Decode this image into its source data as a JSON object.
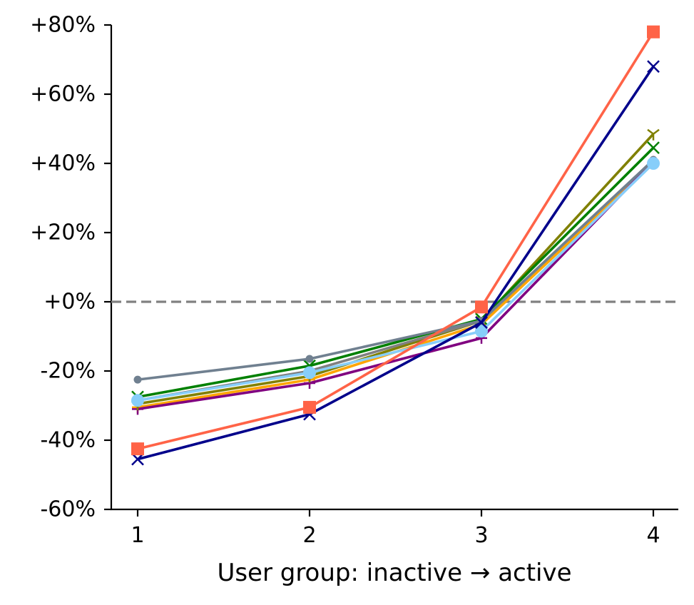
{
  "chart_data": {
    "type": "line",
    "title": "",
    "xlabel": "User group: inactive → active",
    "ylabel": "",
    "x": [
      1,
      2,
      3,
      4
    ],
    "xticks": [
      "1",
      "2",
      "3",
      "4"
    ],
    "ylim": [
      -60,
      80
    ],
    "yticks": [
      {
        "value": 80,
        "label": "+80%"
      },
      {
        "value": 60,
        "label": "+60%"
      },
      {
        "value": 40,
        "label": "+40%"
      },
      {
        "value": 20,
        "label": "+20%"
      },
      {
        "value": 0,
        "label": "+0%"
      },
      {
        "value": -20,
        "label": "-20%"
      },
      {
        "value": -40,
        "label": "-40%"
      },
      {
        "value": -60,
        "label": "-60%"
      }
    ],
    "reference_line": {
      "y": 0,
      "style": "dashed",
      "color": "#808080"
    },
    "grid": false,
    "legend": "none",
    "series": [
      {
        "color": "#FFA500",
        "marker": "plus",
        "values": [
          -30.5,
          -22.5,
          -6.5,
          40
        ]
      },
      {
        "color": "#800080",
        "marker": "plus",
        "values": [
          -31,
          -23.5,
          -10.5,
          40.5
        ]
      },
      {
        "color": "#808000",
        "marker": "tri_down",
        "values": [
          -29.5,
          -21.5,
          -5.5,
          48.5
        ]
      },
      {
        "color": "#008000",
        "marker": "x",
        "values": [
          -27.5,
          -18.5,
          -5,
          44.5
        ]
      },
      {
        "color": "#808080",
        "marker": "circle_small",
        "values": [
          -28.5,
          -20,
          -5.5,
          41
        ]
      },
      {
        "color": "#708090",
        "marker": "circle_small",
        "values": [
          -22.5,
          -16.5,
          -5.5,
          41
        ]
      },
      {
        "color": "#87CEFA",
        "marker": "circle",
        "values": [
          -28.5,
          -20.5,
          -8.5,
          40
        ]
      },
      {
        "color": "#00008B",
        "marker": "x",
        "values": [
          -45.5,
          -32.5,
          -6,
          68
        ]
      },
      {
        "color": "#FF6347",
        "marker": "square",
        "values": [
          -42.5,
          -30.5,
          -1.5,
          78
        ]
      }
    ]
  }
}
